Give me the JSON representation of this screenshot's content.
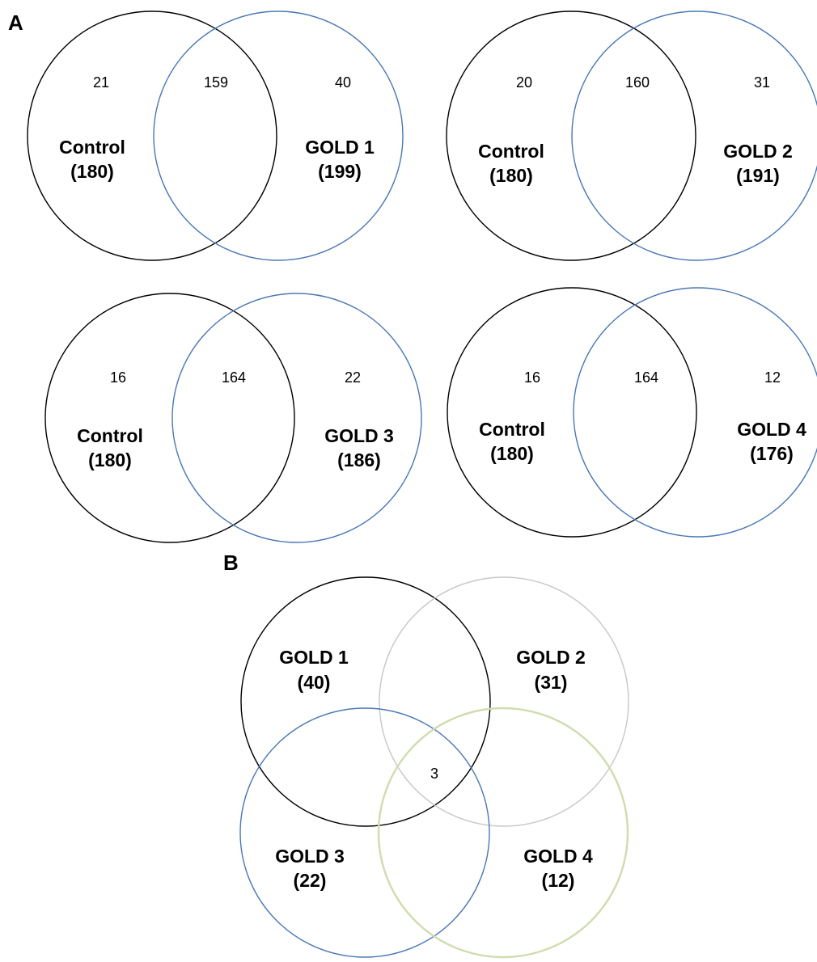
{
  "panel_labels": {
    "a": "A",
    "b": "B"
  },
  "colors": {
    "control": "#000000",
    "gold1_a": "#4a78b5",
    "gold1_b": "#000000",
    "gold2_b": "#c7c7c7",
    "gold3_b": "#4a78b5",
    "gold4_b": "#cfdcae",
    "text": "#000000"
  },
  "panel_a": [
    {
      "left_only": "21",
      "overlap": "159",
      "right_only": "40",
      "left_name": "Control",
      "left_total": "(180)",
      "right_name": "GOLD 1",
      "right_total": "(199)"
    },
    {
      "left_only": "20",
      "overlap": "160",
      "right_only": "31",
      "left_name": "Control",
      "left_total": "(180)",
      "right_name": "GOLD 2",
      "right_total": "(191)"
    },
    {
      "left_only": "16",
      "overlap": "164",
      "right_only": "22",
      "left_name": "Control",
      "left_total": "(180)",
      "right_name": "GOLD 3",
      "right_total": "(186)"
    },
    {
      "left_only": "16",
      "overlap": "164",
      "right_only": "12",
      "left_name": "Control",
      "left_total": "(180)",
      "right_name": "GOLD 4",
      "right_total": "(176)"
    }
  ],
  "panel_b": {
    "sets": [
      {
        "name": "GOLD 1",
        "total": "(40)"
      },
      {
        "name": "GOLD 2",
        "total": "(31)"
      },
      {
        "name": "GOLD 3",
        "total": "(22)"
      },
      {
        "name": "GOLD 4",
        "total": "(12)"
      }
    ],
    "center_count": "3"
  }
}
